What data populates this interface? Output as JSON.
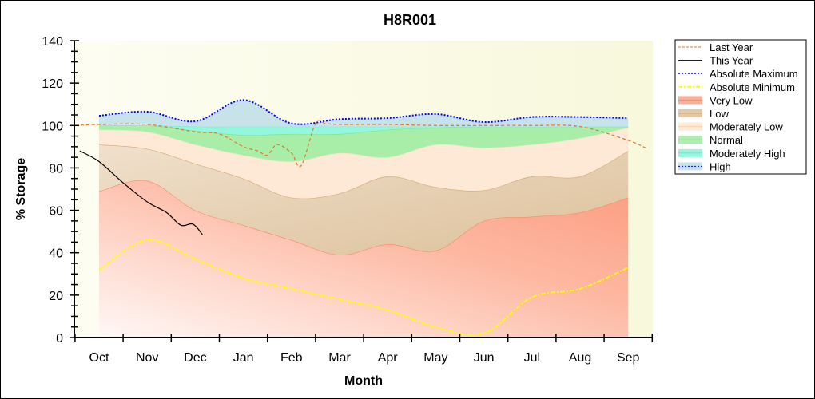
{
  "chart_data": {
    "type": "area",
    "title": "H8R001",
    "xlabel": "Month",
    "ylabel": "% Storage",
    "ylim": [
      0,
      140
    ],
    "yticks": [
      0,
      20,
      40,
      60,
      80,
      100,
      120,
      140
    ],
    "categories": [
      "Oct",
      "Nov",
      "Dec",
      "Jan",
      "Feb",
      "Mar",
      "Apr",
      "May",
      "Jun",
      "Jul",
      "Aug",
      "Sep"
    ],
    "grid": false,
    "legend_position": "right",
    "bands": [
      {
        "name": "Very Low",
        "color": "#fca38a",
        "lower": [
          0,
          0,
          0,
          0,
          0,
          0,
          0,
          0,
          0,
          0,
          0,
          0
        ],
        "upper": [
          69,
          74,
          60,
          53,
          46,
          39,
          44,
          41,
          55,
          57,
          59,
          66
        ]
      },
      {
        "name": "Low",
        "color": "#dcc09a",
        "lower": [
          69,
          74,
          60,
          53,
          46,
          39,
          44,
          41,
          55,
          57,
          59,
          66
        ],
        "upper": [
          91,
          89,
          82,
          75,
          66,
          68,
          76,
          71,
          69.5,
          76,
          76,
          88
        ]
      },
      {
        "name": "Moderately Low",
        "color": "#fde9d6",
        "lower": [
          91,
          89,
          82,
          75,
          66,
          68,
          76,
          71,
          69.5,
          76,
          76,
          88
        ],
        "upper": [
          98,
          97,
          91,
          86,
          83,
          87,
          85,
          91,
          89.5,
          91,
          94,
          99
        ]
      },
      {
        "name": "Normal",
        "color": "#a8eea8",
        "lower": [
          98,
          97,
          91,
          86,
          83,
          87,
          85,
          91,
          89.5,
          91,
          94,
          99
        ],
        "upper": [
          100,
          100,
          97.5,
          95.5,
          96,
          96,
          98,
          99,
          99.5,
          99.5,
          99.5,
          99.5
        ]
      },
      {
        "name": "Moderately High",
        "color": "#93f7de",
        "lower": [
          100,
          100,
          97.5,
          95.5,
          96,
          96,
          98,
          99,
          99.5,
          99.5,
          99.5,
          99.5
        ],
        "upper": [
          100,
          100,
          99.5,
          99.5,
          99.5,
          99.5,
          99.5,
          99.5,
          99.5,
          99.5,
          99.5,
          99.5
        ]
      },
      {
        "name": "High",
        "color": "#c8e2ea",
        "lower": [
          100,
          100,
          99.5,
          99.5,
          99.5,
          99.5,
          99.5,
          99.5,
          99.5,
          99.5,
          99.5,
          99.5
        ],
        "upper": [
          104.6,
          106.5,
          102,
          112,
          101,
          103,
          103.5,
          105.4,
          101.6,
          104,
          104,
          103.5
        ]
      }
    ],
    "lines": [
      {
        "name": "Last Year",
        "color": "#e07828",
        "dash": "4,3",
        "x": [
          -0.5,
          0,
          1,
          2,
          2.5,
          3,
          3.3,
          3.5,
          3.7,
          4,
          4.2,
          4.5,
          4.7,
          5,
          6,
          7,
          8,
          9,
          10,
          11,
          11.4
        ],
        "y": [
          100,
          100.5,
          100.5,
          97,
          96,
          90,
          88,
          86,
          91,
          87,
          81,
          101,
          101,
          100.5,
          100.5,
          100,
          100,
          100,
          99.5,
          93,
          89
        ]
      },
      {
        "name": "This Year",
        "color": "#000000",
        "dash": "",
        "x": [
          -0.4,
          0,
          0.5,
          1,
          1.4,
          1.7,
          1.95,
          2.15
        ],
        "y": [
          88,
          83,
          73,
          64,
          59,
          53,
          53.5,
          48.5
        ]
      },
      {
        "name": "Absolute Maximum",
        "color": "#0000ff",
        "dash": "2,2",
        "x": [
          0,
          1,
          2,
          3,
          4,
          5,
          6,
          7,
          8,
          9,
          10,
          11
        ],
        "y": [
          104.6,
          106.5,
          102,
          112,
          101,
          103,
          103.5,
          105.4,
          101.6,
          104,
          104,
          103.5
        ]
      },
      {
        "name": "Absolute Minimum",
        "color": "#ffff00",
        "dash": "6,2,2,2",
        "x": [
          0,
          1,
          2,
          3,
          4,
          5,
          6,
          7,
          8,
          9,
          10,
          11
        ],
        "y": [
          32,
          46,
          37,
          28,
          23,
          18,
          13,
          5,
          2,
          19,
          23,
          33
        ]
      }
    ]
  },
  "legend": [
    "Last Year",
    "This Year",
    "Absolute Maximum",
    "Absolute Minimum",
    "Very Low",
    "Low",
    "Moderately Low",
    "Normal",
    "Moderately High",
    "High"
  ]
}
